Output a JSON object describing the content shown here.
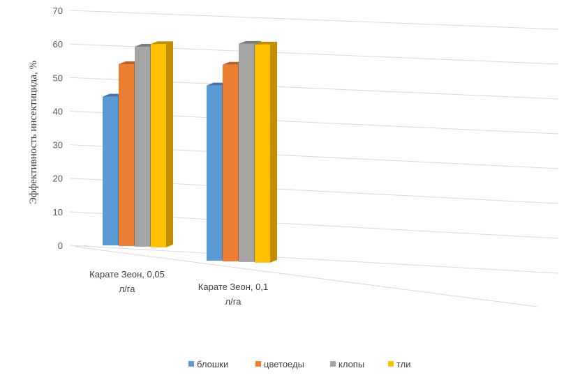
{
  "chart_data": {
    "type": "bar",
    "title": "",
    "xlabel": "",
    "ylabel": "Эффективность инсектицида, %",
    "ylim": [
      0,
      70
    ],
    "yticks": [
      0,
      10,
      20,
      30,
      40,
      50,
      60,
      70
    ],
    "categories": [
      [
        "Карате Зеон, 0,05",
        "л/га"
      ],
      [
        "Карате Зеон, 0,1",
        "л/га"
      ]
    ],
    "series": [
      {
        "name": "блошки",
        "values": [
          45,
          53
        ],
        "color": "#5b9bd5",
        "side_color": "#3f75a8"
      },
      {
        "name": "цветоеды",
        "values": [
          55,
          59.5
        ],
        "color": "#ed7d31",
        "side_color": "#b85f22"
      },
      {
        "name": "клопы",
        "values": [
          60.5,
          66
        ],
        "color": "#a5a5a5",
        "side_color": "#7c7c7c"
      },
      {
        "name": "тли",
        "values": [
          61.5,
          66
        ],
        "color": "#ffc000",
        "side_color": "#c08f00"
      }
    ],
    "grid": true,
    "legend_position": "bottom",
    "style": "3d-perspective"
  }
}
